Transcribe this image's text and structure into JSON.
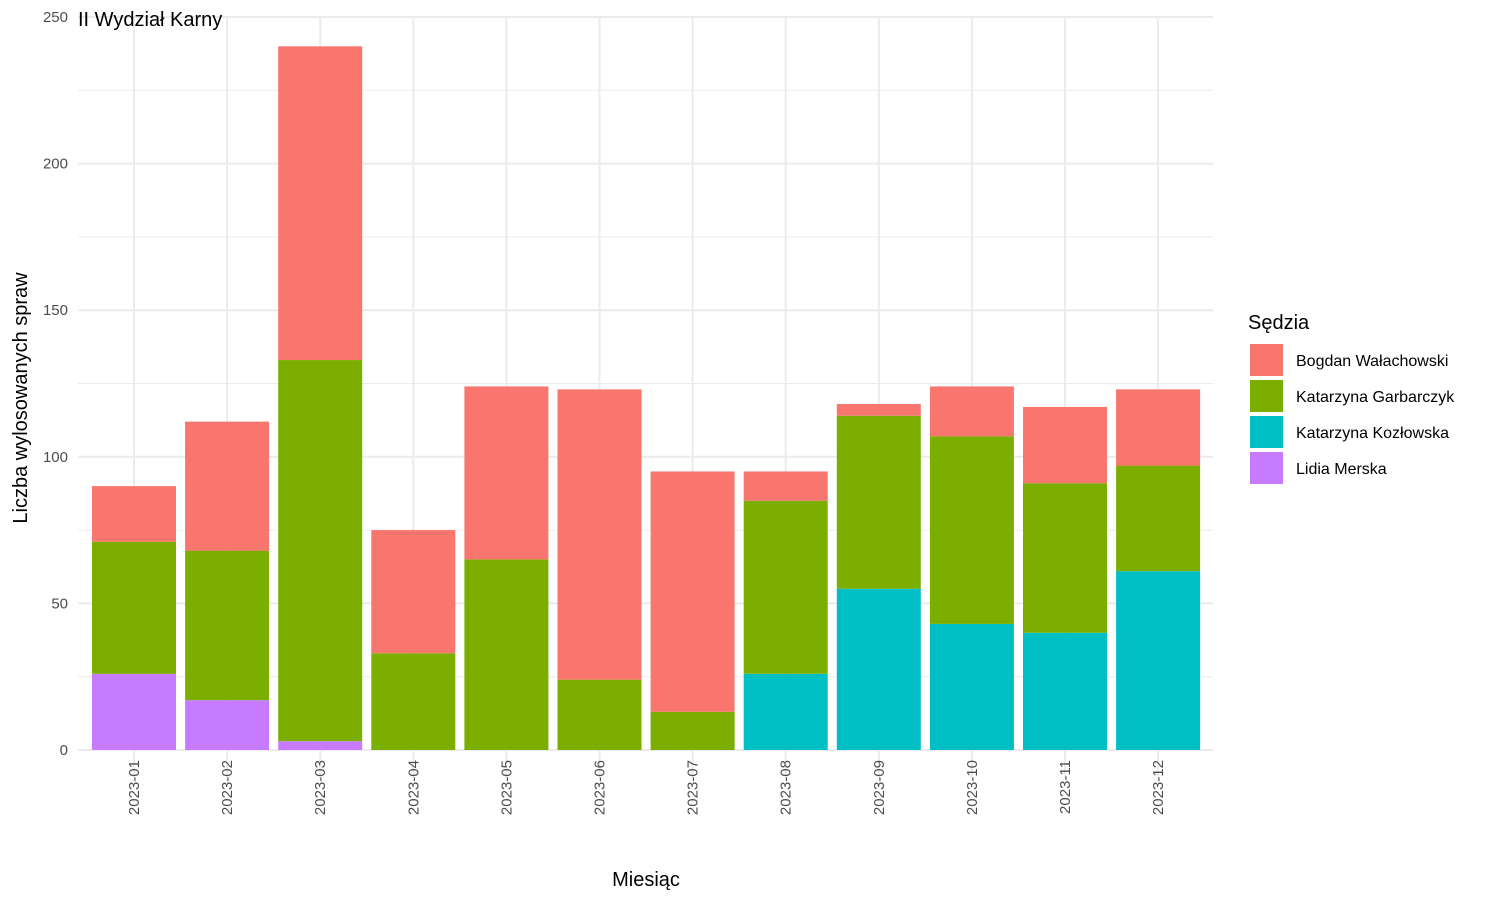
{
  "chart_data": {
    "type": "bar",
    "stacked": true,
    "title": "II Wydział Karny",
    "xlabel": "Miesiąc",
    "ylabel": "Liczba wylosowanych spraw",
    "ylim": [
      0,
      250
    ],
    "y_ticks": [
      0,
      50,
      100,
      150,
      200,
      250
    ],
    "y_tick_labels": [
      "0",
      "50",
      "100",
      "150",
      "200",
      "250"
    ],
    "grid": true,
    "x_tick_rotation": "vertical",
    "legend": {
      "title": "Sędzia",
      "placement": "right"
    },
    "categories": [
      "2023-01",
      "2023-02",
      "2023-03",
      "2023-04",
      "2023-05",
      "2023-06",
      "2023-07",
      "2023-08",
      "2023-09",
      "2023-10",
      "2023-11",
      "2023-12"
    ],
    "stack_order_bottom_to_top": [
      "Lidia Merska",
      "Katarzyna Kozłowska",
      "Katarzyna Garbarczyk",
      "Bogdan Wałachowski"
    ],
    "series": [
      {
        "name": "Bogdan Wałachowski",
        "color": "#f8766d",
        "values": [
          19,
          44,
          107,
          42,
          59,
          99,
          82,
          10,
          4,
          17,
          26,
          26
        ]
      },
      {
        "name": "Katarzyna Garbarczyk",
        "color": "#7cae00",
        "values": [
          45,
          51,
          130,
          33,
          65,
          24,
          13,
          59,
          59,
          64,
          51,
          36
        ]
      },
      {
        "name": "Katarzyna Kozłowska",
        "color": "#00bfc4",
        "values": [
          0,
          0,
          0,
          0,
          0,
          0,
          0,
          26,
          55,
          43,
          40,
          61
        ]
      },
      {
        "name": "Lidia Merska",
        "color": "#c77cff",
        "values": [
          26,
          17,
          3,
          0,
          0,
          0,
          0,
          0,
          0,
          0,
          0,
          0
        ]
      }
    ]
  }
}
